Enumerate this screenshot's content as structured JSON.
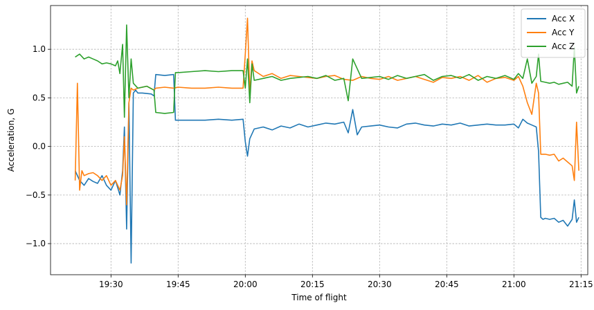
{
  "chart_data": {
    "type": "line",
    "title": "",
    "xlabel": "Time of flight",
    "ylabel": "Acceleration, G",
    "x_unit": "minutes since 19:00",
    "xlim": [
      16.5,
      136.5
    ],
    "ylim": [
      -1.32,
      1.45
    ],
    "grid": true,
    "legend_position": "top-right",
    "x_ticks": [
      {
        "value": 30,
        "label": "19:30"
      },
      {
        "value": 45,
        "label": "19:45"
      },
      {
        "value": 60,
        "label": "20:00"
      },
      {
        "value": 75,
        "label": "20:15"
      },
      {
        "value": 90,
        "label": "20:30"
      },
      {
        "value": 105,
        "label": "20:45"
      },
      {
        "value": 120,
        "label": "21:00"
      },
      {
        "value": 135,
        "label": "21:15"
      }
    ],
    "y_ticks": [
      {
        "value": -1.0,
        "label": "−1.0"
      },
      {
        "value": -0.5,
        "label": "−0.5"
      },
      {
        "value": 0.0,
        "label": "0.0"
      },
      {
        "value": 0.5,
        "label": "0.5"
      },
      {
        "value": 1.0,
        "label": "1.0"
      }
    ],
    "series": [
      {
        "name": "Acc X",
        "color": "#1f77b4",
        "x": [
          22.0,
          23.0,
          24.0,
          25.0,
          26.0,
          27.0,
          28.0,
          29.0,
          30.0,
          31.0,
          32.0,
          32.6,
          33.0,
          33.5,
          34.0,
          34.5,
          35.0,
          35.5,
          36.0,
          37.0,
          39.0,
          39.6,
          40.0,
          42.0,
          44.0,
          44.4,
          45.0,
          48.0,
          51.0,
          54.0,
          57.0,
          59.5,
          60.0,
          60.5,
          61.0,
          62.0,
          64.0,
          66.0,
          68.0,
          70.0,
          72.0,
          74.0,
          76.0,
          78.0,
          80.0,
          82.0,
          83.0,
          84.0,
          85.0,
          86.0,
          88.0,
          90.0,
          92.0,
          94.0,
          96.0,
          98.0,
          100.0,
          102.0,
          104.0,
          106.0,
          108.0,
          110.0,
          112.0,
          114.0,
          116.0,
          118.0,
          120.0,
          121.0,
          122.0,
          123.0,
          124.0,
          125.0,
          125.5,
          126.0,
          126.5,
          127.0,
          128.0,
          129.0,
          130.0,
          131.0,
          132.0,
          133.0,
          133.5,
          134.0,
          134.5
        ],
        "values": [
          -0.25,
          -0.35,
          -0.4,
          -0.33,
          -0.36,
          -0.38,
          -0.3,
          -0.4,
          -0.45,
          -0.35,
          -0.5,
          -0.25,
          0.2,
          -0.85,
          0.45,
          -1.2,
          0.55,
          0.58,
          0.55,
          0.55,
          0.54,
          0.52,
          0.74,
          0.73,
          0.74,
          0.27,
          0.27,
          0.27,
          0.27,
          0.28,
          0.27,
          0.28,
          0.05,
          -0.1,
          0.08,
          0.18,
          0.2,
          0.17,
          0.21,
          0.19,
          0.23,
          0.2,
          0.22,
          0.24,
          0.23,
          0.25,
          0.14,
          0.38,
          0.12,
          0.2,
          0.21,
          0.22,
          0.2,
          0.19,
          0.23,
          0.24,
          0.22,
          0.21,
          0.23,
          0.22,
          0.24,
          0.21,
          0.22,
          0.23,
          0.22,
          0.22,
          0.23,
          0.19,
          0.28,
          0.24,
          0.22,
          0.2,
          -0.05,
          -0.73,
          -0.75,
          -0.74,
          -0.75,
          -0.74,
          -0.78,
          -0.76,
          -0.82,
          -0.75,
          -0.55,
          -0.78,
          -0.73
        ]
      },
      {
        "name": "Acc Y",
        "color": "#ff7f0e",
        "x": [
          22.0,
          22.5,
          23.0,
          23.5,
          24.0,
          25.0,
          26.0,
          27.0,
          28.0,
          29.0,
          30.0,
          31.0,
          32.0,
          32.6,
          33.0,
          33.5,
          34.0,
          34.5,
          35.0,
          36.0,
          38.0,
          39.6,
          40.0,
          42.0,
          44.0,
          45.0,
          48.0,
          51.0,
          54.0,
          57.0,
          59.5,
          60.0,
          60.5,
          61.0,
          61.5,
          62.0,
          64.0,
          66.0,
          68.0,
          70.0,
          72.0,
          74.0,
          76.0,
          78.0,
          80.0,
          82.0,
          84.0,
          86.0,
          88.0,
          90.0,
          92.0,
          94.0,
          96.0,
          98.0,
          100.0,
          102.0,
          104.0,
          106.0,
          108.0,
          110.0,
          112.0,
          114.0,
          116.0,
          118.0,
          120.0,
          121.0,
          122.0,
          123.0,
          124.0,
          125.0,
          125.5,
          126.0,
          127.0,
          128.0,
          129.0,
          130.0,
          131.0,
          132.0,
          133.0,
          133.5,
          134.0,
          134.5
        ],
        "values": [
          -0.35,
          0.65,
          -0.45,
          -0.25,
          -0.3,
          -0.28,
          -0.27,
          -0.3,
          -0.35,
          -0.3,
          -0.4,
          -0.35,
          -0.45,
          -0.3,
          0.1,
          -0.6,
          0.45,
          0.6,
          0.58,
          0.6,
          0.62,
          0.58,
          0.6,
          0.61,
          0.6,
          0.61,
          0.6,
          0.6,
          0.61,
          0.6,
          0.6,
          0.95,
          1.32,
          0.55,
          0.88,
          0.78,
          0.72,
          0.75,
          0.7,
          0.73,
          0.72,
          0.71,
          0.7,
          0.72,
          0.73,
          0.69,
          0.68,
          0.72,
          0.7,
          0.69,
          0.72,
          0.68,
          0.7,
          0.72,
          0.69,
          0.66,
          0.71,
          0.7,
          0.72,
          0.68,
          0.73,
          0.66,
          0.7,
          0.71,
          0.68,
          0.72,
          0.62,
          0.45,
          0.33,
          0.65,
          0.55,
          -0.08,
          -0.08,
          -0.09,
          -0.08,
          -0.15,
          -0.12,
          -0.16,
          -0.2,
          -0.35,
          0.25,
          -0.25
        ]
      },
      {
        "name": "Acc Z",
        "color": "#2ca02c",
        "x": [
          22.0,
          23.0,
          24.0,
          25.0,
          26.0,
          27.0,
          28.0,
          29.0,
          30.0,
          31.0,
          31.5,
          32.0,
          32.6,
          33.0,
          33.5,
          34.0,
          34.5,
          35.0,
          36.0,
          38.0,
          39.6,
          40.0,
          42.0,
          44.0,
          44.4,
          45.0,
          48.0,
          51.0,
          54.0,
          57.0,
          59.5,
          60.0,
          60.5,
          61.0,
          61.5,
          62.0,
          64.0,
          66.0,
          68.0,
          70.0,
          72.0,
          74.0,
          76.0,
          78.0,
          80.0,
          82.0,
          83.0,
          84.0,
          86.0,
          88.0,
          90.0,
          92.0,
          94.0,
          96.0,
          98.0,
          100.0,
          102.0,
          104.0,
          106.0,
          108.0,
          110.0,
          112.0,
          114.0,
          116.0,
          118.0,
          120.0,
          121.0,
          122.0,
          123.0,
          124.0,
          125.0,
          125.5,
          126.0,
          127.0,
          128.0,
          129.0,
          130.0,
          131.0,
          132.0,
          133.0,
          133.5,
          134.0,
          134.5
        ],
        "values": [
          0.92,
          0.95,
          0.9,
          0.92,
          0.9,
          0.88,
          0.85,
          0.86,
          0.85,
          0.83,
          0.88,
          0.75,
          1.05,
          0.3,
          1.25,
          0.5,
          0.9,
          0.65,
          0.6,
          0.62,
          0.58,
          0.35,
          0.34,
          0.35,
          0.76,
          0.76,
          0.77,
          0.78,
          0.77,
          0.78,
          0.78,
          0.6,
          0.9,
          0.45,
          0.85,
          0.68,
          0.7,
          0.72,
          0.68,
          0.7,
          0.71,
          0.72,
          0.7,
          0.73,
          0.68,
          0.7,
          0.47,
          0.9,
          0.7,
          0.71,
          0.72,
          0.69,
          0.73,
          0.7,
          0.72,
          0.74,
          0.68,
          0.72,
          0.73,
          0.7,
          0.74,
          0.68,
          0.72,
          0.7,
          0.73,
          0.69,
          0.75,
          0.7,
          0.9,
          0.65,
          0.72,
          0.95,
          0.67,
          0.66,
          0.65,
          0.66,
          0.64,
          0.65,
          0.66,
          0.62,
          1.02,
          0.55,
          0.62
        ]
      }
    ]
  }
}
